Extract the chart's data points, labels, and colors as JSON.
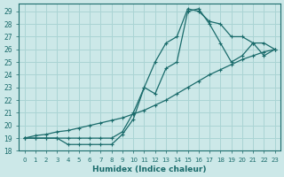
{
  "xlabel": "Humidex (Indice chaleur)",
  "ylabel": "",
  "bg_color": "#cce8e8",
  "line_color": "#1a6b6b",
  "grid_color": "#aad4d4",
  "xlim": [
    -0.5,
    23.5
  ],
  "ylim": [
    18,
    29.6
  ],
  "yticks": [
    18,
    19,
    20,
    21,
    22,
    23,
    24,
    25,
    26,
    27,
    28,
    29
  ],
  "xticks": [
    0,
    1,
    2,
    3,
    4,
    5,
    6,
    7,
    8,
    9,
    10,
    11,
    12,
    13,
    14,
    15,
    16,
    17,
    18,
    19,
    20,
    21,
    22,
    23
  ],
  "line1_x": [
    0,
    1,
    2,
    3,
    4,
    5,
    6,
    7,
    8,
    9,
    10,
    11,
    12,
    13,
    14,
    15,
    16,
    17,
    18,
    19,
    20,
    21,
    22,
    23
  ],
  "line1_y": [
    19.0,
    19.0,
    19.0,
    19.0,
    19.0,
    19.0,
    19.0,
    19.0,
    19.0,
    19.5,
    21.0,
    23.0,
    25.0,
    26.5,
    27.0,
    29.2,
    29.0,
    28.2,
    28.0,
    27.0,
    27.0,
    26.5,
    26.5,
    26.0
  ],
  "line2_x": [
    0,
    1,
    2,
    3,
    4,
    5,
    6,
    7,
    8,
    9,
    10,
    11,
    12,
    13,
    14,
    15,
    16,
    17,
    18,
    19,
    20,
    21,
    22,
    23
  ],
  "line2_y": [
    19.0,
    19.0,
    19.0,
    19.0,
    18.5,
    18.5,
    18.5,
    18.5,
    18.5,
    19.3,
    20.5,
    23.0,
    22.5,
    24.5,
    25.0,
    29.0,
    29.2,
    28.0,
    26.5,
    25.0,
    25.5,
    26.5,
    25.5,
    26.0
  ],
  "line3_x": [
    0,
    1,
    2,
    3,
    4,
    5,
    6,
    7,
    8,
    9,
    10,
    11,
    12,
    13,
    14,
    15,
    16,
    17,
    18,
    19,
    20,
    21,
    22,
    23
  ],
  "line3_y": [
    19.0,
    19.2,
    19.3,
    19.5,
    19.6,
    19.8,
    20.0,
    20.2,
    20.4,
    20.6,
    20.9,
    21.2,
    21.6,
    22.0,
    22.5,
    23.0,
    23.5,
    24.0,
    24.4,
    24.8,
    25.2,
    25.5,
    25.8,
    26.0
  ]
}
